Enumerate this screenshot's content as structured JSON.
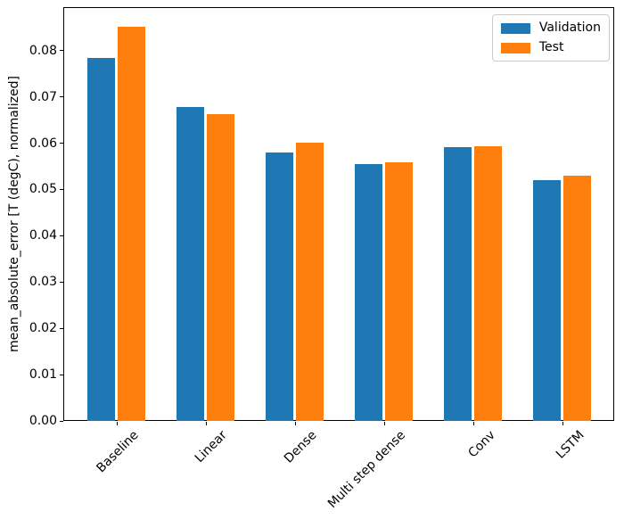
{
  "chart_data": {
    "type": "bar",
    "title": "",
    "categories": [
      "Baseline",
      "Linear",
      "Dense",
      "Multi step dense",
      "Conv",
      "LSTM"
    ],
    "series": [
      {
        "name": "Validation",
        "color": "#1f77b4",
        "values": [
          0.0785,
          0.0679,
          0.0579,
          0.0554,
          0.0591,
          0.052
        ]
      },
      {
        "name": "Test",
        "color": "#ff7f0e",
        "values": [
          0.0852,
          0.0663,
          0.0601,
          0.0558,
          0.0594,
          0.0529
        ]
      }
    ],
    "xlabel": "",
    "ylabel": "mean_absolute_error [T (degC), normalized]",
    "ylim": [
      0,
      0.0894
    ],
    "y_ticks": [
      0.0,
      0.01,
      0.02,
      0.03,
      0.04,
      0.05,
      0.06,
      0.07,
      0.08
    ],
    "y_tick_labels": [
      "0.00",
      "0.01",
      "0.02",
      "0.03",
      "0.04",
      "0.05",
      "0.06",
      "0.07",
      "0.08"
    ],
    "bar_width_units": 0.3,
    "grid": false,
    "legend_position": "upper right"
  }
}
